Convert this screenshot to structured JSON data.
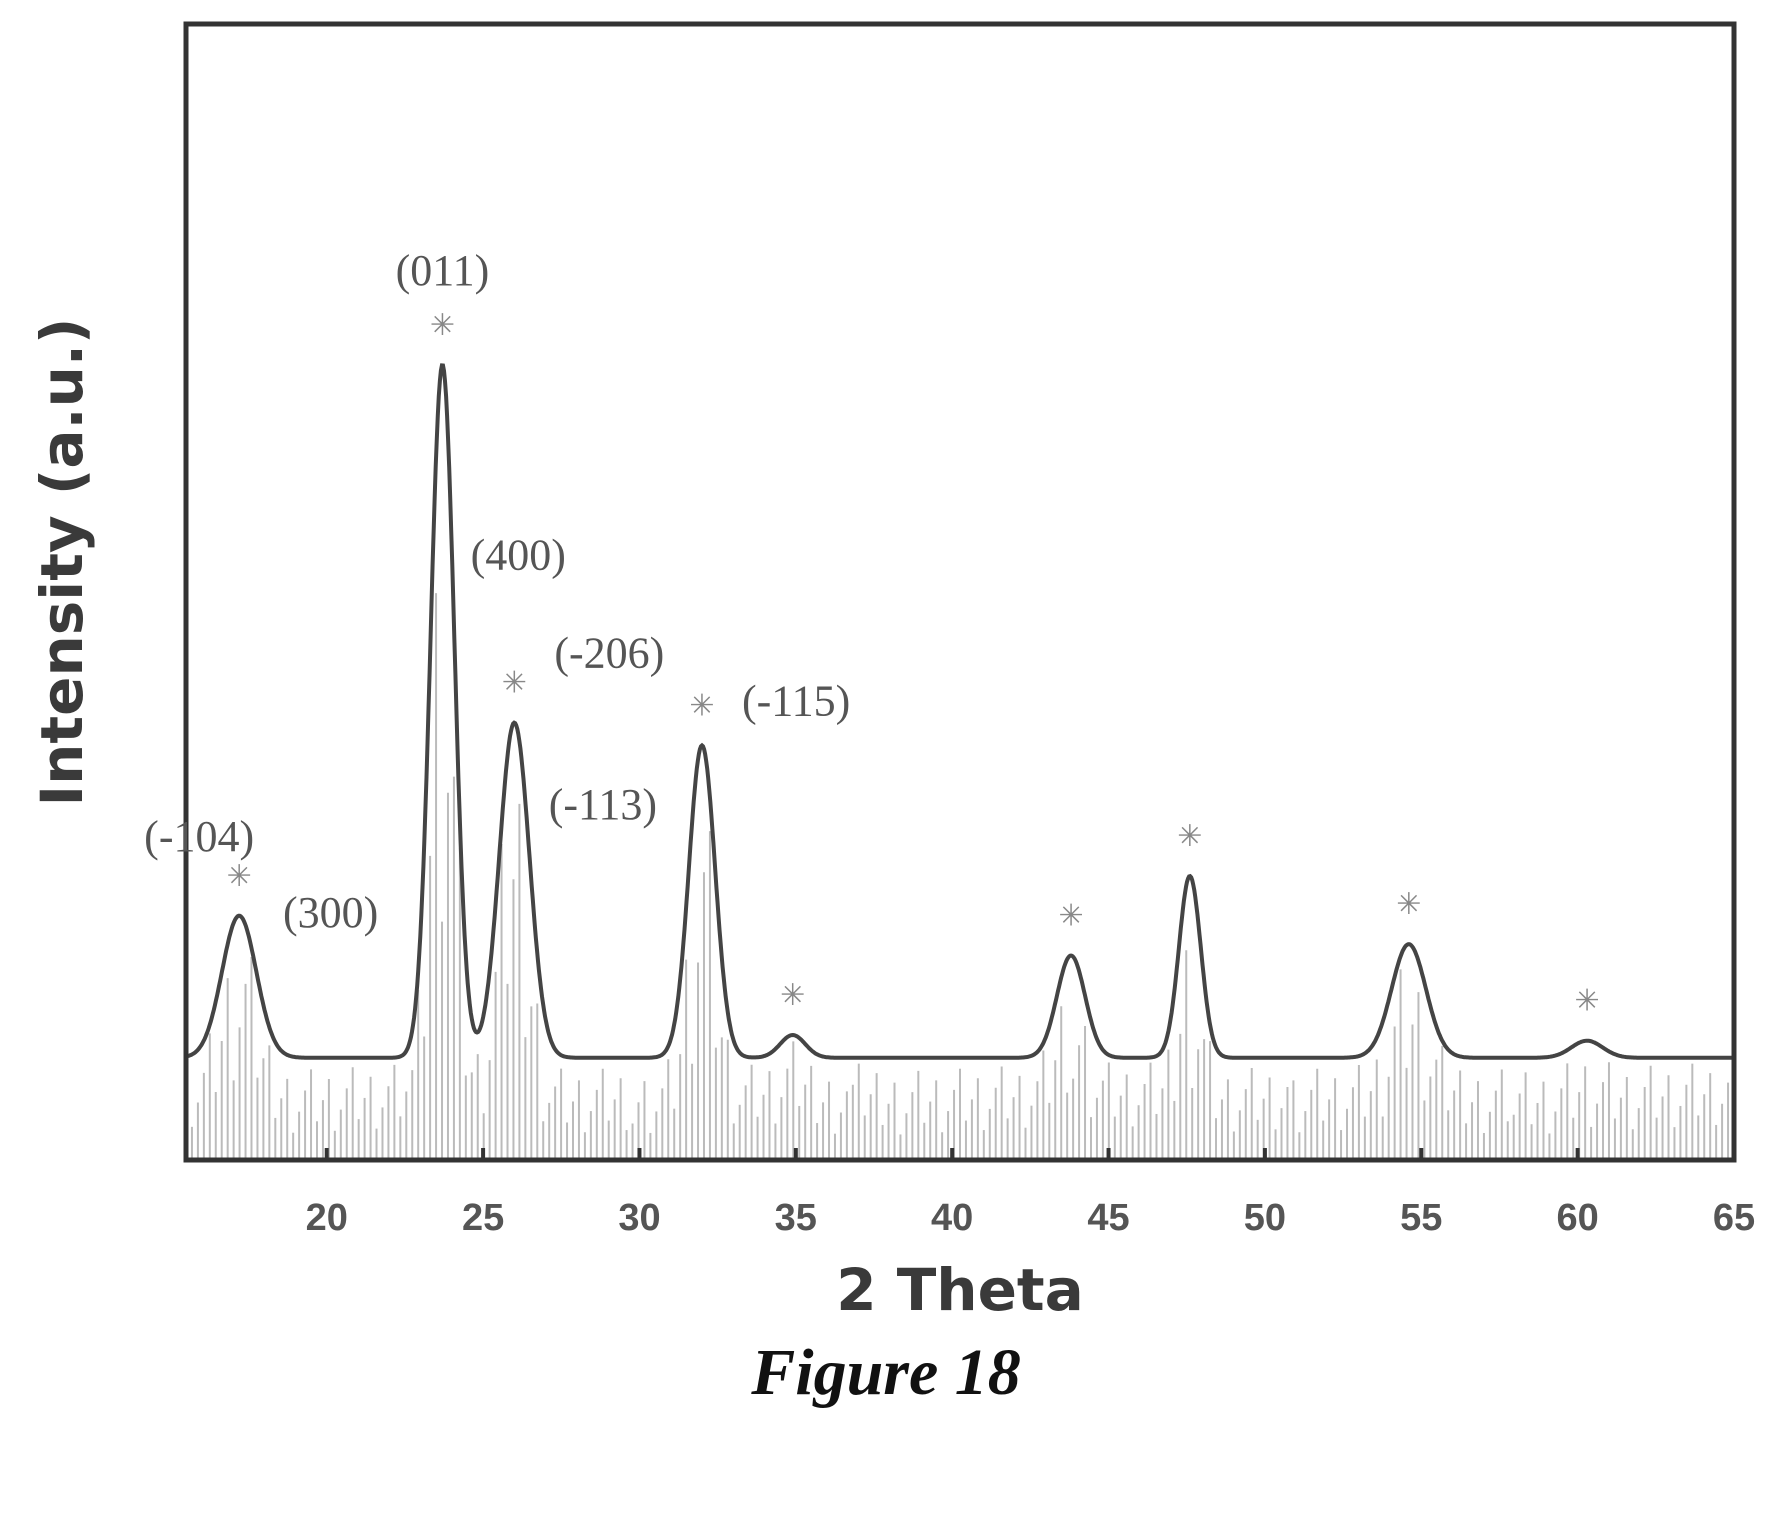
{
  "caption": "Figure 18",
  "chart_data": {
    "type": "line",
    "title": "",
    "xlabel": "2 Theta",
    "ylabel": "Intensity (a.u.)",
    "xlim": [
      15.5,
      65
    ],
    "ylim": [
      0,
      1
    ],
    "xticks": [
      20,
      25,
      30,
      35,
      40,
      45,
      50,
      55,
      60,
      65
    ],
    "baseline": 0.09,
    "peaks": [
      {
        "x": 17.2,
        "y": 0.215,
        "w": 0.55,
        "label": "(-104)",
        "marker": true
      },
      {
        "x": 23.7,
        "y": 0.7,
        "w": 0.38,
        "label": "(011)",
        "marker": true
      },
      {
        "x": 26.0,
        "y": 0.385,
        "w": 0.48,
        "label": "(-206)",
        "marker": true
      },
      {
        "x": 32.0,
        "y": 0.365,
        "w": 0.42,
        "label": "(-115)",
        "marker": true
      },
      {
        "x": 34.9,
        "y": 0.11,
        "w": 0.4,
        "label": "",
        "marker": true
      },
      {
        "x": 43.8,
        "y": 0.18,
        "w": 0.45,
        "label": "",
        "marker": true
      },
      {
        "x": 47.6,
        "y": 0.25,
        "w": 0.35,
        "label": "",
        "marker": true
      },
      {
        "x": 54.6,
        "y": 0.19,
        "w": 0.55,
        "label": "",
        "marker": true
      },
      {
        "x": 60.3,
        "y": 0.105,
        "w": 0.5,
        "label": "",
        "marker": true
      }
    ],
    "annotations": [
      {
        "text": "(300)",
        "x": 18.6,
        "y": 0.205
      },
      {
        "text": "(400)",
        "x": 24.6,
        "y": 0.52
      },
      {
        "text": "(-113)",
        "x": 27.1,
        "y": 0.3
      }
    ]
  }
}
